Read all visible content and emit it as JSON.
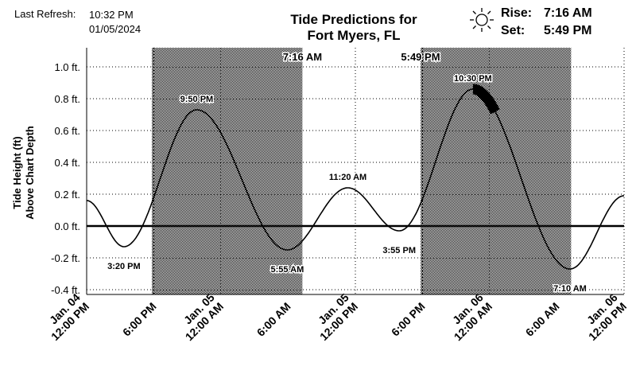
{
  "header": {
    "last_refresh_label": "Last Refresh:",
    "last_refresh_time": "10:32 PM",
    "last_refresh_date": "01/05/2024",
    "title_line1": "Tide Predictions for",
    "title_line2": "Fort Myers, FL",
    "rise_label": "Rise:",
    "rise_time": "7:16 AM",
    "set_label": "Set:",
    "set_time": "5:49 PM",
    "sun_icon": "sun-icon"
  },
  "chart_data": {
    "type": "line",
    "ylabel": [
      "Tide Height (ft)",
      "Above Chart Depth"
    ],
    "ylim": [
      -0.43,
      1.12
    ],
    "yticks": [
      {
        "value": 1.0,
        "label": "1.0 ft."
      },
      {
        "value": 0.8,
        "label": "0.8 ft."
      },
      {
        "value": 0.6,
        "label": "0.6 ft."
      },
      {
        "value": 0.4,
        "label": "0.4 ft."
      },
      {
        "value": 0.2,
        "label": "0.2 ft."
      },
      {
        "value": 0.0,
        "label": "0.0 ft."
      },
      {
        "value": -0.2,
        "label": "-0.2 ft."
      },
      {
        "value": -0.4,
        "label": "-0.4 ft."
      }
    ],
    "x_unit": "hours after Jan. 04 12:00 PM",
    "xlim": [
      0,
      48
    ],
    "xticks": [
      {
        "value": 0,
        "label": [
          "Jan. 04",
          "12:00 PM"
        ]
      },
      {
        "value": 6,
        "label": [
          "6:00 PM"
        ]
      },
      {
        "value": 12,
        "label": [
          "Jan. 05",
          "12:00 AM"
        ]
      },
      {
        "value": 18,
        "label": [
          "6:00 AM"
        ]
      },
      {
        "value": 24,
        "label": [
          "Jan. 05",
          "12:00 PM"
        ]
      },
      {
        "value": 30,
        "label": [
          "6:00 PM"
        ]
      },
      {
        "value": 36,
        "label": [
          "Jan. 06",
          "12:00 AM"
        ]
      },
      {
        "value": 42,
        "label": [
          "6:00 AM"
        ]
      },
      {
        "value": 48,
        "label": [
          "Jan. 06",
          "12:00 PM"
        ]
      }
    ],
    "night_bands": [
      [
        5.82,
        19.27
      ],
      [
        29.82,
        43.27
      ]
    ],
    "sun_labels": [
      {
        "x": 19.27,
        "text": "7:16 AM"
      },
      {
        "x": 29.82,
        "text": "5:49 PM"
      }
    ],
    "extremes": [
      {
        "x": 0.0,
        "y": 0.16
      },
      {
        "x": 3.33,
        "y": -0.13,
        "label": "3:20 PM"
      },
      {
        "x": 9.83,
        "y": 0.73,
        "label": "9:50 PM"
      },
      {
        "x": 17.92,
        "y": -0.15,
        "label": "5:55 AM"
      },
      {
        "x": 23.33,
        "y": 0.24,
        "label": "11:20 AM"
      },
      {
        "x": 27.92,
        "y": -0.03,
        "label": "3:55 PM"
      },
      {
        "x": 34.5,
        "y": 0.86,
        "label": "10:30 PM"
      },
      {
        "x": 43.17,
        "y": -0.27,
        "label": "7:10 AM"
      },
      {
        "x": 48.0,
        "y": 0.19
      }
    ],
    "current_segment": [
      34.5,
      36.5
    ],
    "zero_line": 0.0
  }
}
